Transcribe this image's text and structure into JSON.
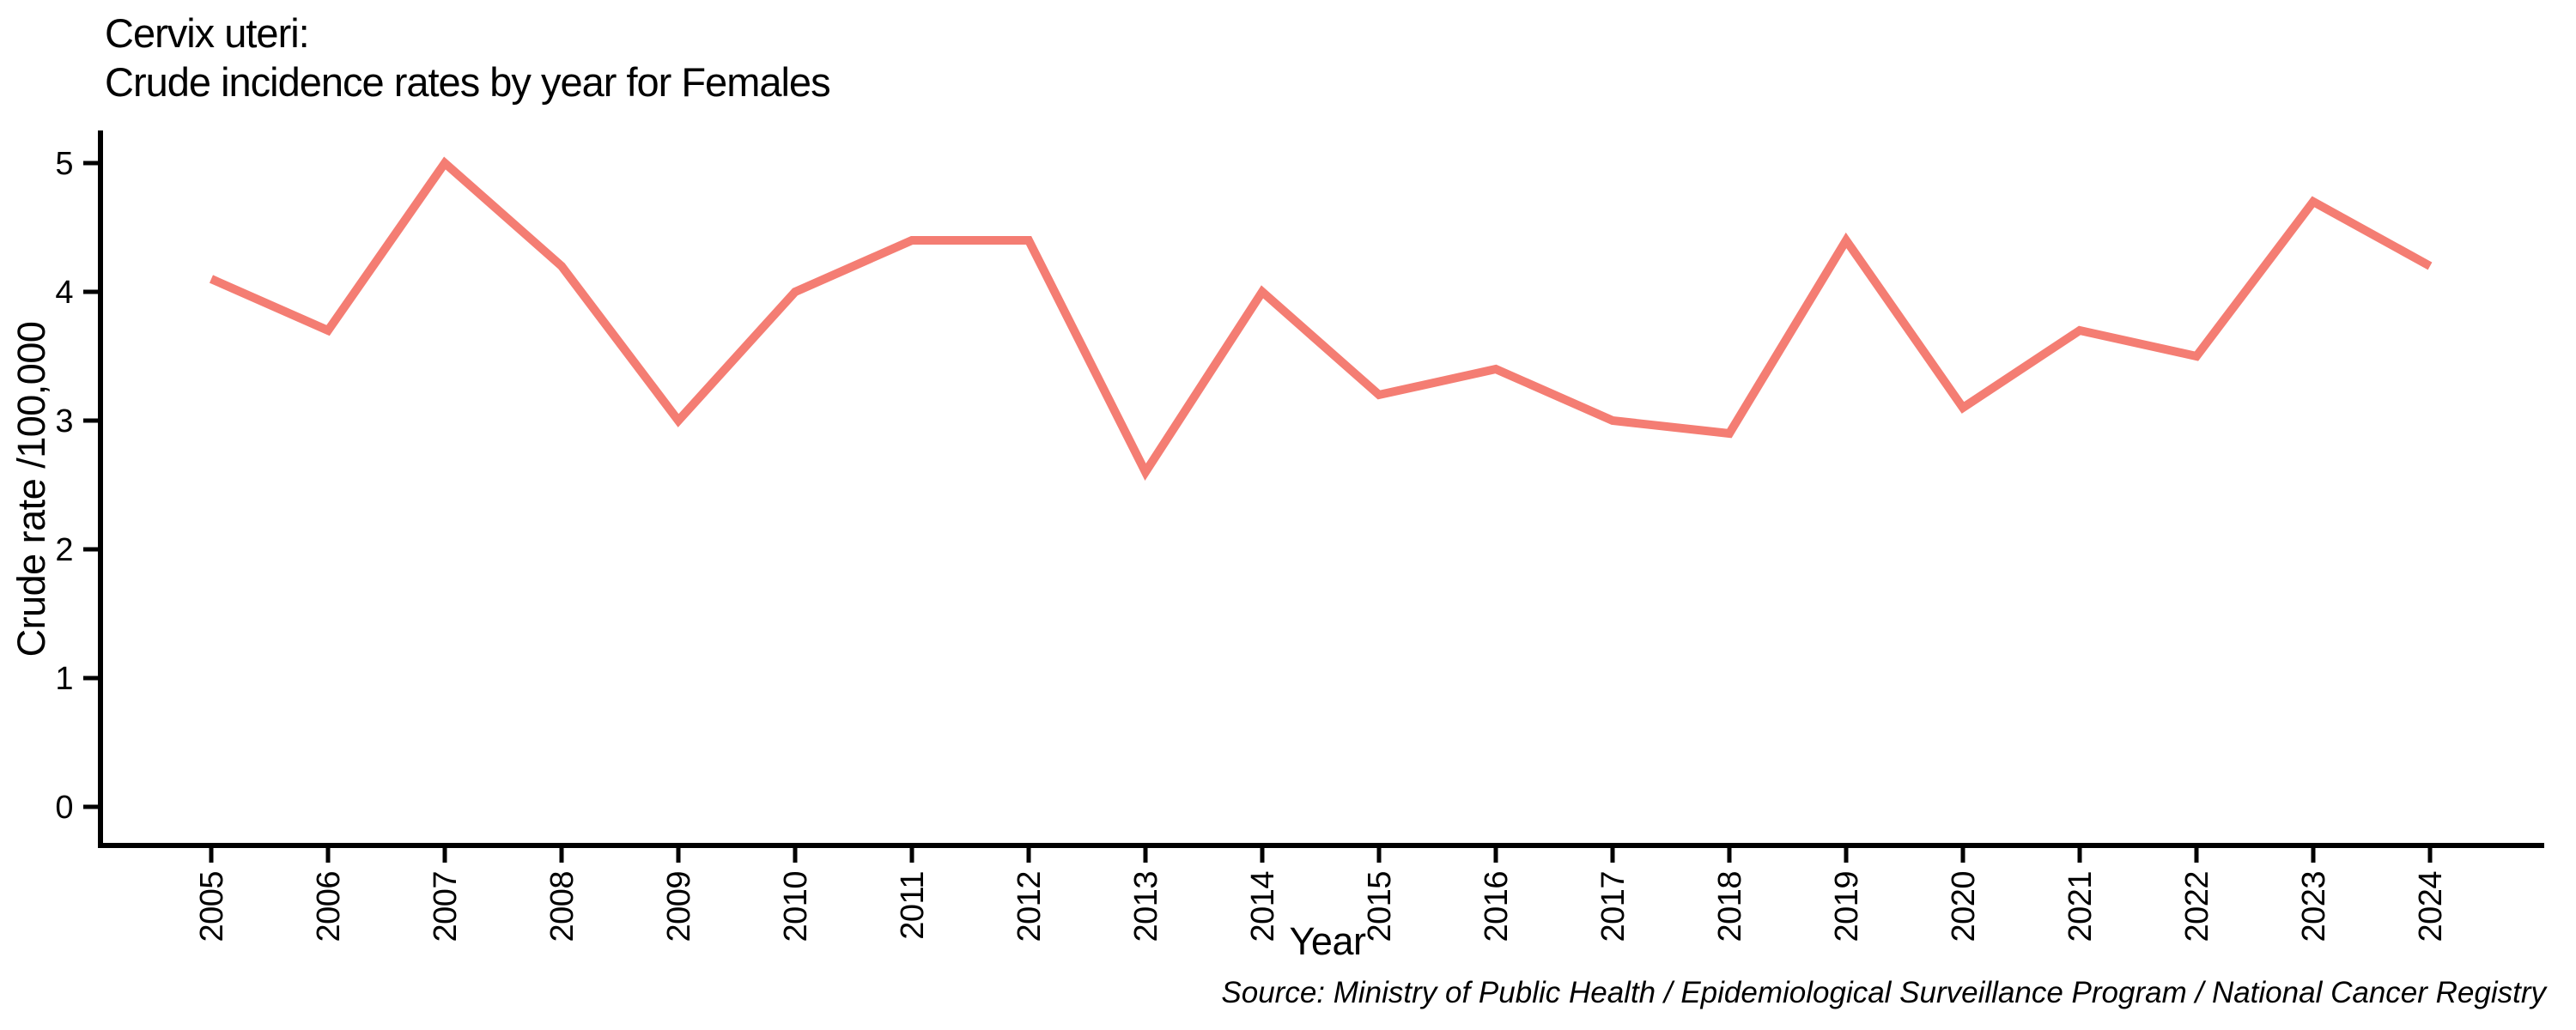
{
  "chart_data": {
    "type": "line",
    "title": "Cervix uteri:",
    "subtitle": "Crude incidence rates by year for Females",
    "xlabel": "Year",
    "ylabel": "Crude rate /100,000",
    "categories": [
      "2005",
      "2006",
      "2007",
      "2008",
      "2009",
      "2010",
      "2011",
      "2012",
      "2013",
      "2014",
      "2015",
      "2016",
      "2017",
      "2018",
      "2019",
      "2020",
      "2021",
      "2022",
      "2023",
      "2024"
    ],
    "values": [
      4.1,
      3.7,
      5.0,
      4.2,
      3.0,
      4.0,
      4.4,
      4.4,
      2.6,
      4.0,
      3.2,
      3.4,
      3.0,
      2.9,
      4.4,
      3.1,
      3.7,
      3.5,
      4.7,
      4.2
    ],
    "yticks": [
      0,
      1,
      2,
      3,
      4,
      5
    ],
    "ylim": [
      0,
      5
    ],
    "x_tick_rotation": -90,
    "grid": "off",
    "legend": "none",
    "line_color": "#f47d73",
    "axis_color": "#000000",
    "source": "Source: Ministry of Public Health / Epidemiological Surveillance Program / National Cancer Registry"
  }
}
